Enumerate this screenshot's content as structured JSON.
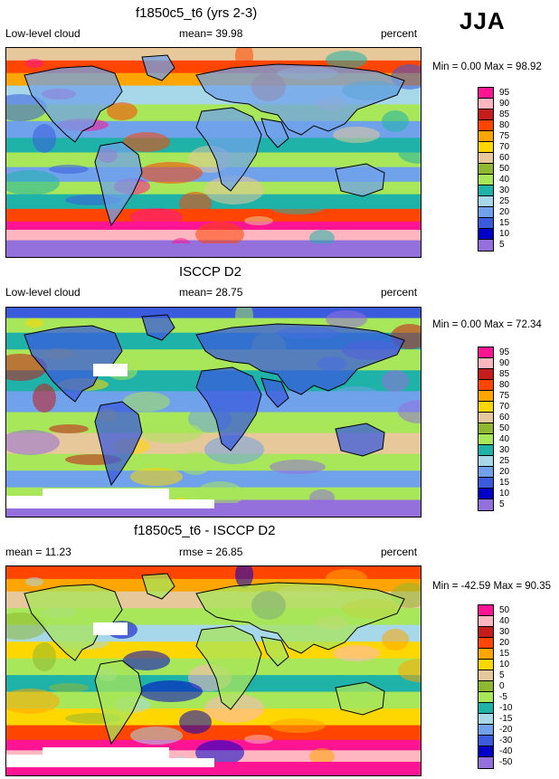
{
  "season": "JJA",
  "panels": [
    {
      "title": "f1850c5_t6 (yrs 2-3)",
      "left_label": "Low-level cloud",
      "center_label": "mean=  39.98",
      "right_label": "percent",
      "minmax": "Min =   0.00 Max =  98.92",
      "levels": [
        "95",
        "90",
        "85",
        "80",
        "75",
        "70",
        "60",
        "50",
        "40",
        "30",
        "25",
        "20",
        "15",
        "10",
        "5"
      ],
      "colors": [
        "#ff1493",
        "#ffb6c1",
        "#c71c1c",
        "#ff4500",
        "#ffa500",
        "#ffd700",
        "#e6c89a",
        "#8fb832",
        "#a8e65a",
        "#1fb2a8",
        "#a6d8ea",
        "#6fa2ea",
        "#3a5bdc",
        "#0000c8",
        "#9370db"
      ],
      "region": {
        "name": "map-panel-model",
        "zonal": [
          0.06,
          0.12,
          0.18,
          0.27,
          0.35,
          0.43,
          0.5,
          0.57,
          0.64,
          0.7,
          0.77,
          0.83,
          0.87,
          0.92,
          0.96
        ],
        "zonal_colors": [
          "#e6c89a",
          "#ff4500",
          "#ffa500",
          "#a6d8ea",
          "#a8e65a",
          "#6fa2ea",
          "#1fb2a8",
          "#a8e65a",
          "#6fa2ea",
          "#a8e65a",
          "#1fb2a8",
          "#ff4500",
          "#ff1493",
          "#ffb6c1",
          "#9370db"
        ]
      }
    },
    {
      "title": "ISCCP D2",
      "left_label": "Low-level cloud",
      "center_label": "mean=  28.75",
      "right_label": "percent",
      "minmax": "Min =   0.00 Max =  72.34",
      "levels": [
        "95",
        "90",
        "85",
        "80",
        "75",
        "70",
        "60",
        "50",
        "40",
        "30",
        "25",
        "20",
        "15",
        "10",
        "5"
      ],
      "colors": [
        "#ff1493",
        "#ffb6c1",
        "#c71c1c",
        "#ff4500",
        "#ffa500",
        "#ffd700",
        "#e6c89a",
        "#8fb832",
        "#a8e65a",
        "#1fb2a8",
        "#a6d8ea",
        "#6fa2ea",
        "#3a5bdc",
        "#0000c8",
        "#9370db"
      ],
      "region": {
        "name": "map-panel-obs",
        "zonal": [
          0.05,
          0.12,
          0.2,
          0.3,
          0.4,
          0.5,
          0.6,
          0.7,
          0.78,
          0.86,
          0.92,
          0.97
        ],
        "zonal_colors": [
          "#3a5bdc",
          "#a8e65a",
          "#1fb2a8",
          "#a8e65a",
          "#1fb2a8",
          "#6fa2ea",
          "#a8e65a",
          "#e6c89a",
          "#a8e65a",
          "#6fa2ea",
          "#a8e65a",
          "#9370db"
        ]
      }
    },
    {
      "title": "f1850c5_t6 - ISCCP D2",
      "left_label": "mean =  11.23",
      "center_label": "rmse =  26.85",
      "right_label": "percent",
      "minmax": "Min = -42.59 Max =  90.35",
      "levels": [
        "50",
        "40",
        "30",
        "20",
        "15",
        "10",
        "5",
        "0",
        "-5",
        "-10",
        "-15",
        "-20",
        "-30",
        "-40",
        "-50"
      ],
      "colors": [
        "#ff1493",
        "#ffb6c1",
        "#c71c1c",
        "#ff4500",
        "#ffa500",
        "#ffd700",
        "#e6c89a",
        "#8fb832",
        "#a8e65a",
        "#1fb2a8",
        "#a6d8ea",
        "#6fa2ea",
        "#3a5bdc",
        "#0000c8",
        "#9370db"
      ],
      "region": {
        "name": "map-panel-diff",
        "zonal": [
          0.06,
          0.12,
          0.2,
          0.28,
          0.36,
          0.44,
          0.52,
          0.6,
          0.68,
          0.76,
          0.83,
          0.88,
          0.94,
          0.99
        ],
        "zonal_colors": [
          "#ff4500",
          "#ffa500",
          "#e6c89a",
          "#a8e65a",
          "#a6d8ea",
          "#ffd700",
          "#a8e65a",
          "#1fb2a8",
          "#a8e65a",
          "#ffd700",
          "#ff4500",
          "#ff1493",
          "#ffb6c1",
          "#ff1493"
        ]
      }
    }
  ]
}
